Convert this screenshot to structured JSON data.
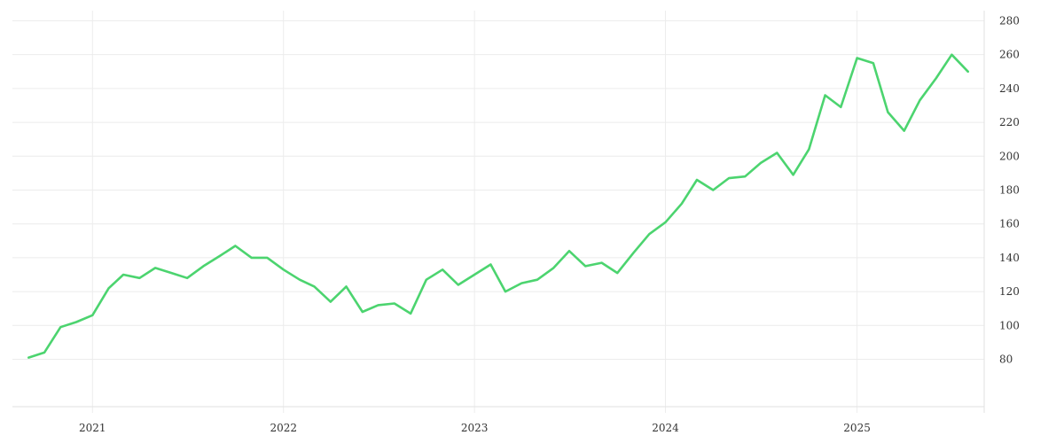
{
  "chart_data": {
    "type": "line",
    "title": "",
    "xlabel": "",
    "ylabel": "",
    "x_ticks": [
      "2021",
      "2022",
      "2023",
      "2024",
      "2025"
    ],
    "y_ticks": [
      80,
      100,
      120,
      140,
      160,
      180,
      200,
      220,
      240,
      260,
      280
    ],
    "ylim": [
      52,
      286
    ],
    "xlim": [
      "2020-08-01",
      "2025-09-01"
    ],
    "y_axis_position": "right",
    "grid": true,
    "legend": "none",
    "series": [
      {
        "color": "#4cd46f",
        "x": [
          "2020-09-01",
          "2020-10-01",
          "2020-11-01",
          "2020-12-01",
          "2021-01-01",
          "2021-02-01",
          "2021-03-01",
          "2021-04-01",
          "2021-05-01",
          "2021-06-01",
          "2021-07-01",
          "2021-08-01",
          "2021-09-01",
          "2021-10-01",
          "2021-11-01",
          "2021-12-01",
          "2022-01-01",
          "2022-02-01",
          "2022-03-01",
          "2022-04-01",
          "2022-05-01",
          "2022-06-01",
          "2022-07-01",
          "2022-08-01",
          "2022-09-01",
          "2022-10-01",
          "2022-11-01",
          "2022-12-01",
          "2023-01-01",
          "2023-02-01",
          "2023-03-01",
          "2023-04-01",
          "2023-05-01",
          "2023-06-01",
          "2023-07-01",
          "2023-08-01",
          "2023-09-01",
          "2023-10-01",
          "2023-11-01",
          "2023-12-01",
          "2024-01-01",
          "2024-02-01",
          "2024-03-01",
          "2024-04-01",
          "2024-05-01",
          "2024-06-01",
          "2024-07-01",
          "2024-08-01",
          "2024-09-01",
          "2024-10-01",
          "2024-11-01",
          "2024-12-01",
          "2025-01-01",
          "2025-02-01",
          "2025-03-01",
          "2025-04-01",
          "2025-05-01",
          "2025-06-01",
          "2025-07-01",
          "2025-08-01"
        ],
        "values": [
          81,
          84,
          99,
          102,
          106,
          122,
          130,
          128,
          134,
          131,
          128,
          135,
          141,
          147,
          140,
          140,
          133,
          127,
          123,
          114,
          123,
          108,
          112,
          113,
          107,
          127,
          133,
          124,
          130,
          136,
          120,
          125,
          127,
          134,
          144,
          135,
          137,
          131,
          143,
          154,
          161,
          172,
          186,
          180,
          187,
          188,
          196,
          202,
          189,
          204,
          236,
          229,
          258,
          255,
          226,
          215,
          233,
          246,
          260,
          250
        ]
      }
    ]
  }
}
